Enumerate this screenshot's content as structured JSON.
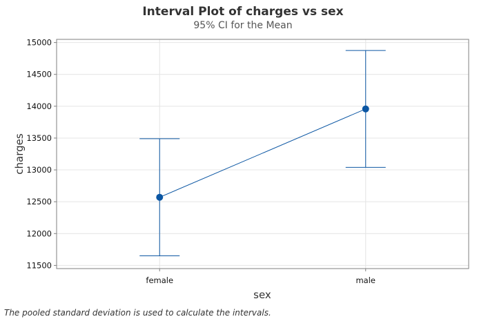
{
  "chart_data": {
    "type": "interval",
    "title": "Interval Plot of charges vs sex",
    "subtitle": "95% CI for the Mean",
    "xlabel": "sex",
    "ylabel": "charges",
    "categories": [
      "female",
      "male"
    ],
    "means": [
      12570,
      13957
    ],
    "lower": [
      11650,
      13040
    ],
    "upper": [
      13490,
      14875
    ],
    "ylim": [
      11450,
      15050
    ],
    "yticks": [
      11500,
      12000,
      12500,
      13000,
      13500,
      14000,
      14500,
      15000
    ],
    "grid": true,
    "connect_means": true,
    "color": "#0b56a3"
  },
  "footnote": "The pooled standard deviation is used to calculate the intervals."
}
